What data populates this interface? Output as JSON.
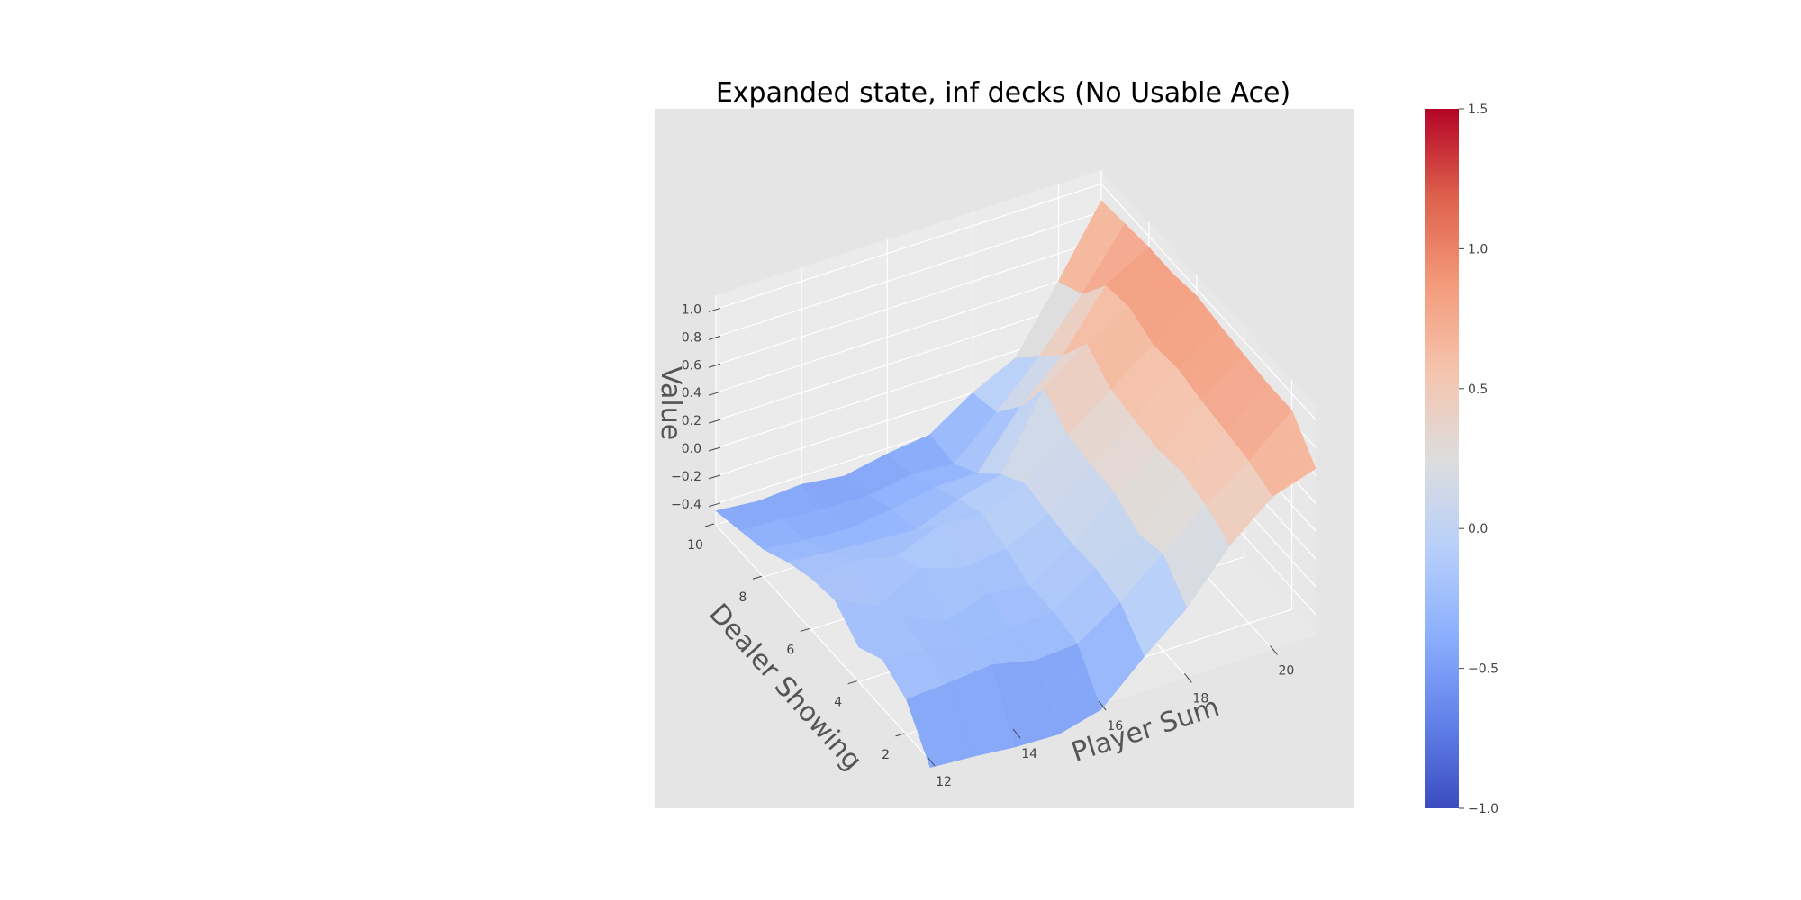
{
  "chart_data": {
    "type": "surface3d",
    "title": "Expanded state, inf decks (No Usable Ace)",
    "xlabel": "Player Sum",
    "ylabel": "Dealer Showing",
    "zlabel": "Value",
    "x": [
      12,
      13,
      14,
      15,
      16,
      17,
      18,
      19,
      20,
      21
    ],
    "y": [
      1,
      2,
      3,
      4,
      5,
      6,
      7,
      8,
      9,
      10
    ],
    "x_ticks": [
      12,
      14,
      16,
      18,
      20
    ],
    "y_ticks": [
      2,
      4,
      6,
      8,
      10
    ],
    "z_ticks": [
      -0.4,
      -0.2,
      0.0,
      0.2,
      0.4,
      0.6,
      0.8,
      1.0
    ],
    "z_tick_labels": [
      "−0.4",
      "−0.2",
      "0.0",
      "0.2",
      "0.4",
      "0.6",
      "0.8",
      "1.0"
    ],
    "xlim": [
      12,
      21
    ],
    "ylim": [
      1,
      10
    ],
    "zlim": [
      -0.55,
      1.1
    ],
    "z": [
      [
        -0.6,
        -0.62,
        -0.65,
        -0.66,
        -0.58,
        -0.3,
        -0.05,
        0.3,
        0.55,
        0.65
      ],
      [
        -0.3,
        -0.28,
        -0.25,
        -0.32,
        -0.3,
        -0.1,
        0.15,
        0.4,
        0.62,
        0.88
      ],
      [
        -0.2,
        -0.24,
        -0.3,
        -0.28,
        -0.26,
        -0.05,
        0.1,
        0.45,
        0.65,
        0.88
      ],
      [
        -0.3,
        -0.18,
        -0.32,
        -0.22,
        -0.26,
        -0.06,
        0.2,
        0.42,
        0.68,
        0.9
      ],
      [
        -0.15,
        -0.3,
        -0.12,
        -0.22,
        -0.18,
        -0.03,
        0.22,
        0.45,
        0.72,
        0.92
      ],
      [
        -0.18,
        -0.15,
        -0.22,
        -0.1,
        -0.12,
        0.0,
        0.25,
        0.48,
        0.7,
        0.95
      ],
      [
        -0.25,
        -0.28,
        -0.3,
        -0.32,
        -0.2,
        -0.12,
        0.4,
        0.62,
        0.78,
        0.92
      ],
      [
        -0.35,
        -0.38,
        -0.4,
        -0.36,
        -0.3,
        -0.3,
        0.08,
        0.35,
        0.75,
        0.92
      ],
      [
        -0.4,
        -0.42,
        -0.44,
        -0.45,
        -0.4,
        -0.42,
        -0.15,
        0.15,
        0.5,
        0.9
      ],
      [
        -0.45,
        -0.48,
        -0.46,
        -0.5,
        -0.44,
        -0.4,
        -0.2,
        -0.05,
        0.4,
        0.88
      ]
    ],
    "colorbar": {
      "min": -1.0,
      "max": 1.5,
      "ticks": [
        -1.0,
        -0.5,
        0.0,
        0.5,
        1.0,
        1.5
      ],
      "tick_labels": [
        "−1.0",
        "−0.5",
        "0.0",
        "0.5",
        "1.0",
        "1.5"
      ],
      "colormap": "coolwarm",
      "low_color": "#3b4cc0",
      "mid_color": "#dddddd",
      "high_color": "#b40426"
    },
    "pane_color": "#e5e5e5",
    "grid": true
  }
}
